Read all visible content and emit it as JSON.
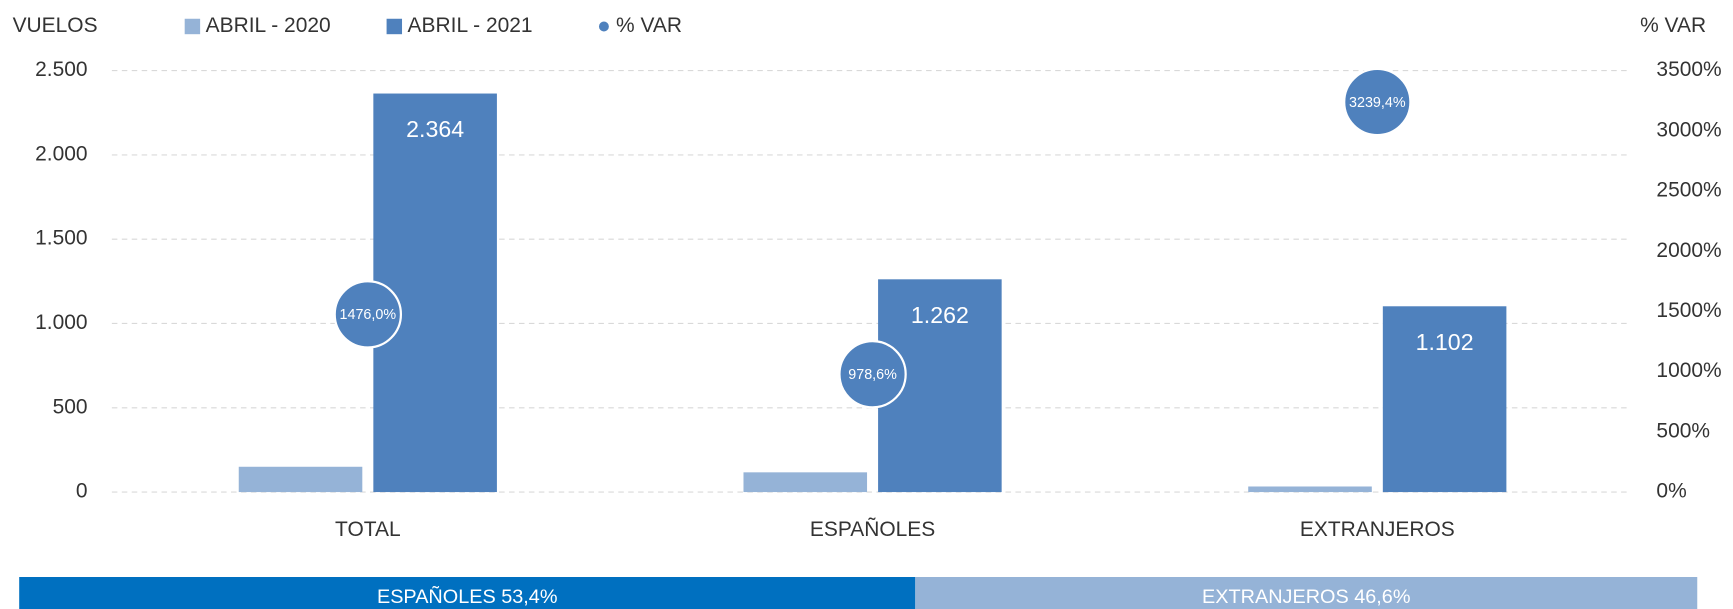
{
  "chart_data": [
    {
      "type": "bar",
      "y_axis_title": "VUELOS",
      "y2_axis_title": "% VAR",
      "categories": [
        "TOTAL",
        "ESPAÑOLES",
        "EXTRANJEROS"
      ],
      "series": [
        {
          "name": "ABRIL - 2020",
          "color": "#95b3d7",
          "values": [
            150,
            117,
            33
          ]
        },
        {
          "name": "ABRIL - 2021",
          "color": "#4f81bd",
          "values": [
            2364,
            1262,
            1102
          ],
          "value_labels": [
            "2.364",
            "1.262",
            "1.102"
          ]
        },
        {
          "name": "% VAR",
          "color": "#4f81bd",
          "type": "scatter",
          "axis": "y2",
          "values": [
            1476.0,
            978.6,
            3239.4
          ],
          "value_labels": [
            "1476,0%",
            "978,6%",
            "3239,4%"
          ]
        }
      ],
      "ylim": [
        0,
        2500
      ],
      "yticks": [
        0,
        500,
        {
          "value": 1000,
          "label": "1.000"
        },
        {
          "value": 1500,
          "label": "1.500"
        },
        {
          "value": 2000,
          "label": "2.000"
        },
        {
          "value": 2500,
          "label": "2.500"
        }
      ],
      "y2lim": [
        0,
        3500
      ],
      "y2ticks": [
        {
          "value": 0,
          "label": "0%"
        },
        {
          "value": 500,
          "label": "500%"
        },
        {
          "value": 1000,
          "label": "1000%"
        },
        {
          "value": 1500,
          "label": "1500%"
        },
        {
          "value": 2000,
          "label": "2000%"
        },
        {
          "value": 2500,
          "label": "2500%"
        },
        {
          "value": 3000,
          "label": "3000%"
        },
        {
          "value": 3500,
          "label": "3500%"
        }
      ],
      "grid": true,
      "legend": "top"
    },
    {
      "type": "stacked-bar",
      "values": [
        53.4,
        46.6
      ],
      "value_labels": [
        "ESPAÑOLES 53,4%",
        "EXTRANJEROS 46,6%"
      ],
      "colors": [
        "#0070c0",
        "#95b3d7"
      ]
    }
  ]
}
